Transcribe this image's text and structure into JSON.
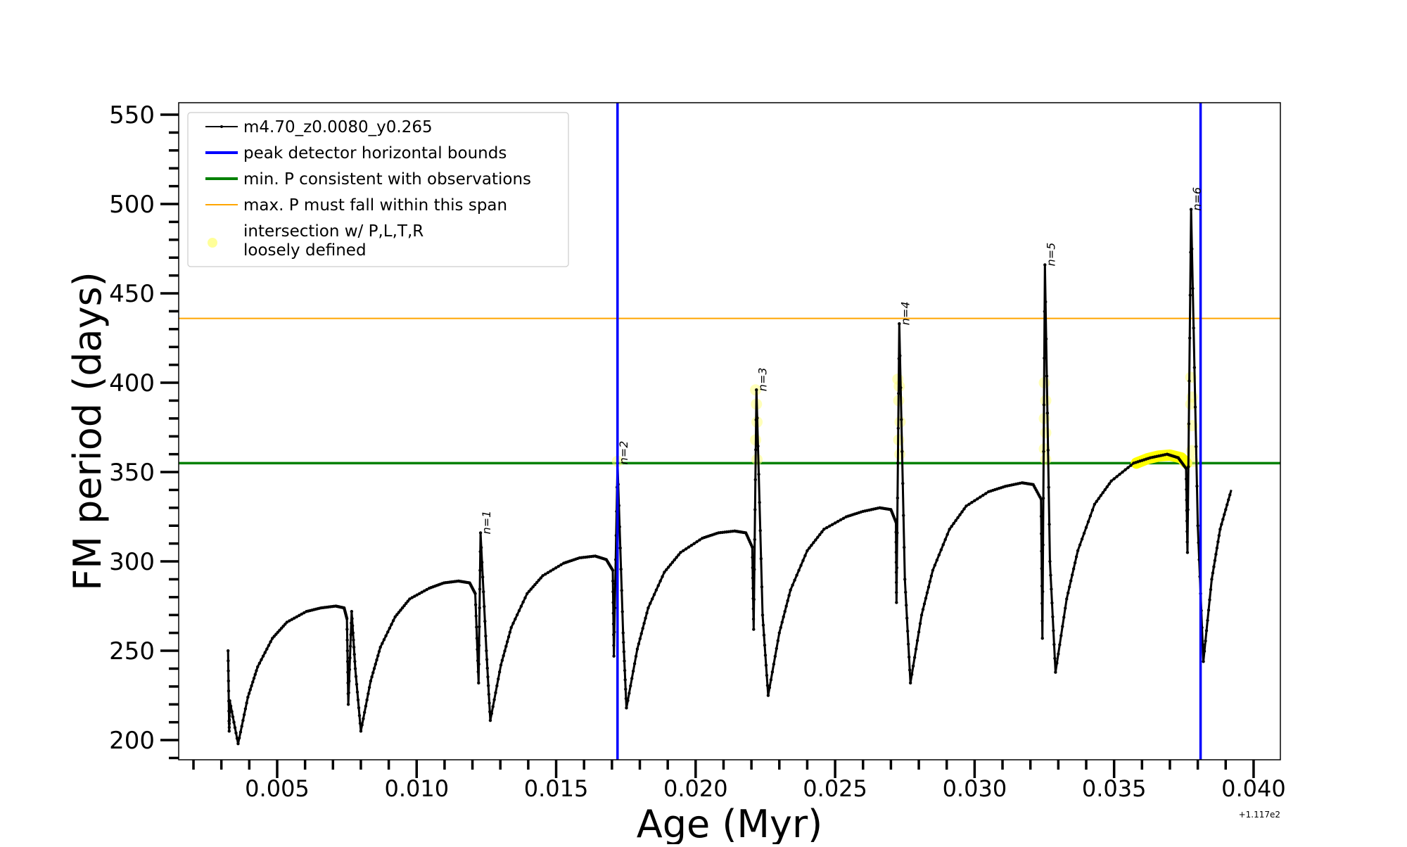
{
  "chart_data": {
    "type": "line",
    "title": "",
    "xlabel": "Age (Myr)",
    "ylabel": "FM period (days)",
    "x_offset_label": "+1.117e2",
    "xlim": [
      0.00147,
      0.04096
    ],
    "ylim": [
      189,
      556.7
    ],
    "xticks": [
      0.005,
      0.01,
      0.015,
      0.02,
      0.025,
      0.03,
      0.035,
      0.04
    ],
    "xtick_labels": [
      "0.005",
      "0.010",
      "0.015",
      "0.020",
      "0.025",
      "0.030",
      "0.035",
      "0.040"
    ],
    "yticks": [
      200,
      250,
      300,
      350,
      400,
      450,
      500,
      550
    ],
    "ytick_labels": [
      "200",
      "250",
      "300",
      "350",
      "400",
      "450",
      "500",
      "550"
    ],
    "grid": false,
    "legend_position": "top-left",
    "legend": [
      {
        "label": "m4.70_z0.0080_y0.265",
        "color": "#000000",
        "style": "line-marker"
      },
      {
        "label": "peak detector horizontal bounds",
        "color": "#0000ff",
        "style": "thick-line"
      },
      {
        "label": "min. P consistent with observations",
        "color": "#008000",
        "style": "thick-line"
      },
      {
        "label": "max. P must fall within this span",
        "color": "#ffa500",
        "style": "thin-line"
      },
      {
        "label": "intersection w/ P,L,T,R\nloosely defined",
        "label_lines": [
          "intersection w/ P,L,T,R",
          "loosely defined"
        ],
        "color": "#ffff80",
        "style": "dot"
      }
    ],
    "series": [
      {
        "name": "m4.70_z0.0080_y0.265",
        "color": "#000000",
        "x": [
          0.00324,
          0.00328,
          0.0033,
          0.0036,
          0.00395,
          0.0043,
          0.00483,
          0.00535,
          0.00605,
          0.00658,
          0.0071,
          0.0074,
          0.0075,
          0.00755,
          0.00767,
          0.0078,
          0.008,
          0.00835,
          0.0087,
          0.00923,
          0.00975,
          0.01045,
          0.01098,
          0.0115,
          0.0119,
          0.0121,
          0.01222,
          0.01229,
          0.0125,
          0.01264,
          0.01302,
          0.01339,
          0.01396,
          0.01452,
          0.01527,
          0.01584,
          0.0164,
          0.0168,
          0.01703,
          0.01707,
          0.0172,
          0.0174,
          0.01752,
          0.01791,
          0.0183,
          0.01888,
          0.01946,
          0.02024,
          0.02082,
          0.0214,
          0.0218,
          0.02203,
          0.02208,
          0.02218,
          0.0224,
          0.0226,
          0.023,
          0.0234,
          0.024,
          0.0246,
          0.0254,
          0.026,
          0.0266,
          0.027,
          0.02718,
          0.0272,
          0.0273,
          0.0275,
          0.0277,
          0.0281,
          0.0285,
          0.0291,
          0.0297,
          0.0305,
          0.0311,
          0.0317,
          0.0321,
          0.03238,
          0.03243,
          0.03252,
          0.0327,
          0.0329,
          0.0333,
          0.0337,
          0.0343,
          0.0349,
          0.0357,
          0.0363,
          0.0369,
          0.0373,
          0.03758,
          0.03763,
          0.03776,
          0.038,
          0.0382,
          0.0385,
          0.0388,
          0.0392
        ],
        "y": [
          250,
          205,
          222,
          198,
          224,
          241,
          257,
          266,
          272,
          274,
          275,
          274,
          268,
          220,
          272,
          240,
          205,
          233,
          252,
          269,
          279,
          285,
          288,
          289,
          288,
          282,
          232,
          316,
          250,
          211,
          242,
          263,
          282,
          292,
          299,
          302,
          303,
          301,
          295,
          247,
          355,
          260,
          218,
          251,
          274,
          294,
          305,
          313,
          316,
          317,
          316,
          308,
          262,
          396,
          270,
          225,
          260,
          284,
          306,
          318,
          325,
          328,
          330,
          329,
          322,
          277,
          433,
          290,
          232,
          270,
          295,
          318,
          331,
          339,
          342,
          344,
          343,
          335,
          257,
          466,
          300,
          238,
          279,
          306,
          332,
          345,
          355,
          358,
          360,
          358,
          352,
          305,
          497,
          320,
          244,
          290,
          318,
          340
        ]
      }
    ],
    "vertical_lines": [
      {
        "name": "peak detector horizontal bounds",
        "x": 0.0172,
        "color": "#0000ff"
      },
      {
        "name": "peak detector horizontal bounds",
        "x": 0.0381,
        "color": "#0000ff"
      }
    ],
    "horizontal_lines": [
      {
        "name": "min. P consistent with observations",
        "y": 355,
        "color": "#008000"
      },
      {
        "name": "max. P must fall within this span",
        "y": 436,
        "color": "#ffa500"
      }
    ],
    "highlight_segment": {
      "x": [
        0.0358,
        0.0362,
        0.0366,
        0.037,
        0.0374,
        0.0376
      ],
      "y": [
        355,
        357.5,
        359,
        359.5,
        358,
        355
      ],
      "color": "#ffff00"
    },
    "intersection_points": {
      "color": "#ffff80",
      "x": [
        0.0172,
        0.02215,
        0.02218,
        0.0222,
        0.02215,
        0.0222,
        0.02725,
        0.0273,
        0.02728,
        0.02733,
        0.02728,
        0.02732,
        0.0325,
        0.03255,
        0.0325,
        0.03255,
        0.0325,
        0.03255,
        0.03775,
        0.0378,
        0.03775,
        0.0378,
        0.03778,
        0.03782
      ],
      "y": [
        356,
        396,
        388,
        378,
        368,
        357,
        402,
        398,
        390,
        378,
        368,
        360,
        400,
        390,
        380,
        372,
        363,
        357,
        403,
        392,
        388,
        376,
        362,
        356
      ]
    },
    "annotations": [
      {
        "text": "n=1",
        "x": 0.01229,
        "y": 316
      },
      {
        "text": "n=2",
        "x": 0.0172,
        "y": 355
      },
      {
        "text": "n=3",
        "x": 0.02218,
        "y": 396
      },
      {
        "text": "n=4",
        "x": 0.0273,
        "y": 433
      },
      {
        "text": "n=5",
        "x": 0.03252,
        "y": 466
      },
      {
        "text": "n=6",
        "x": 0.03776,
        "y": 497
      }
    ]
  }
}
